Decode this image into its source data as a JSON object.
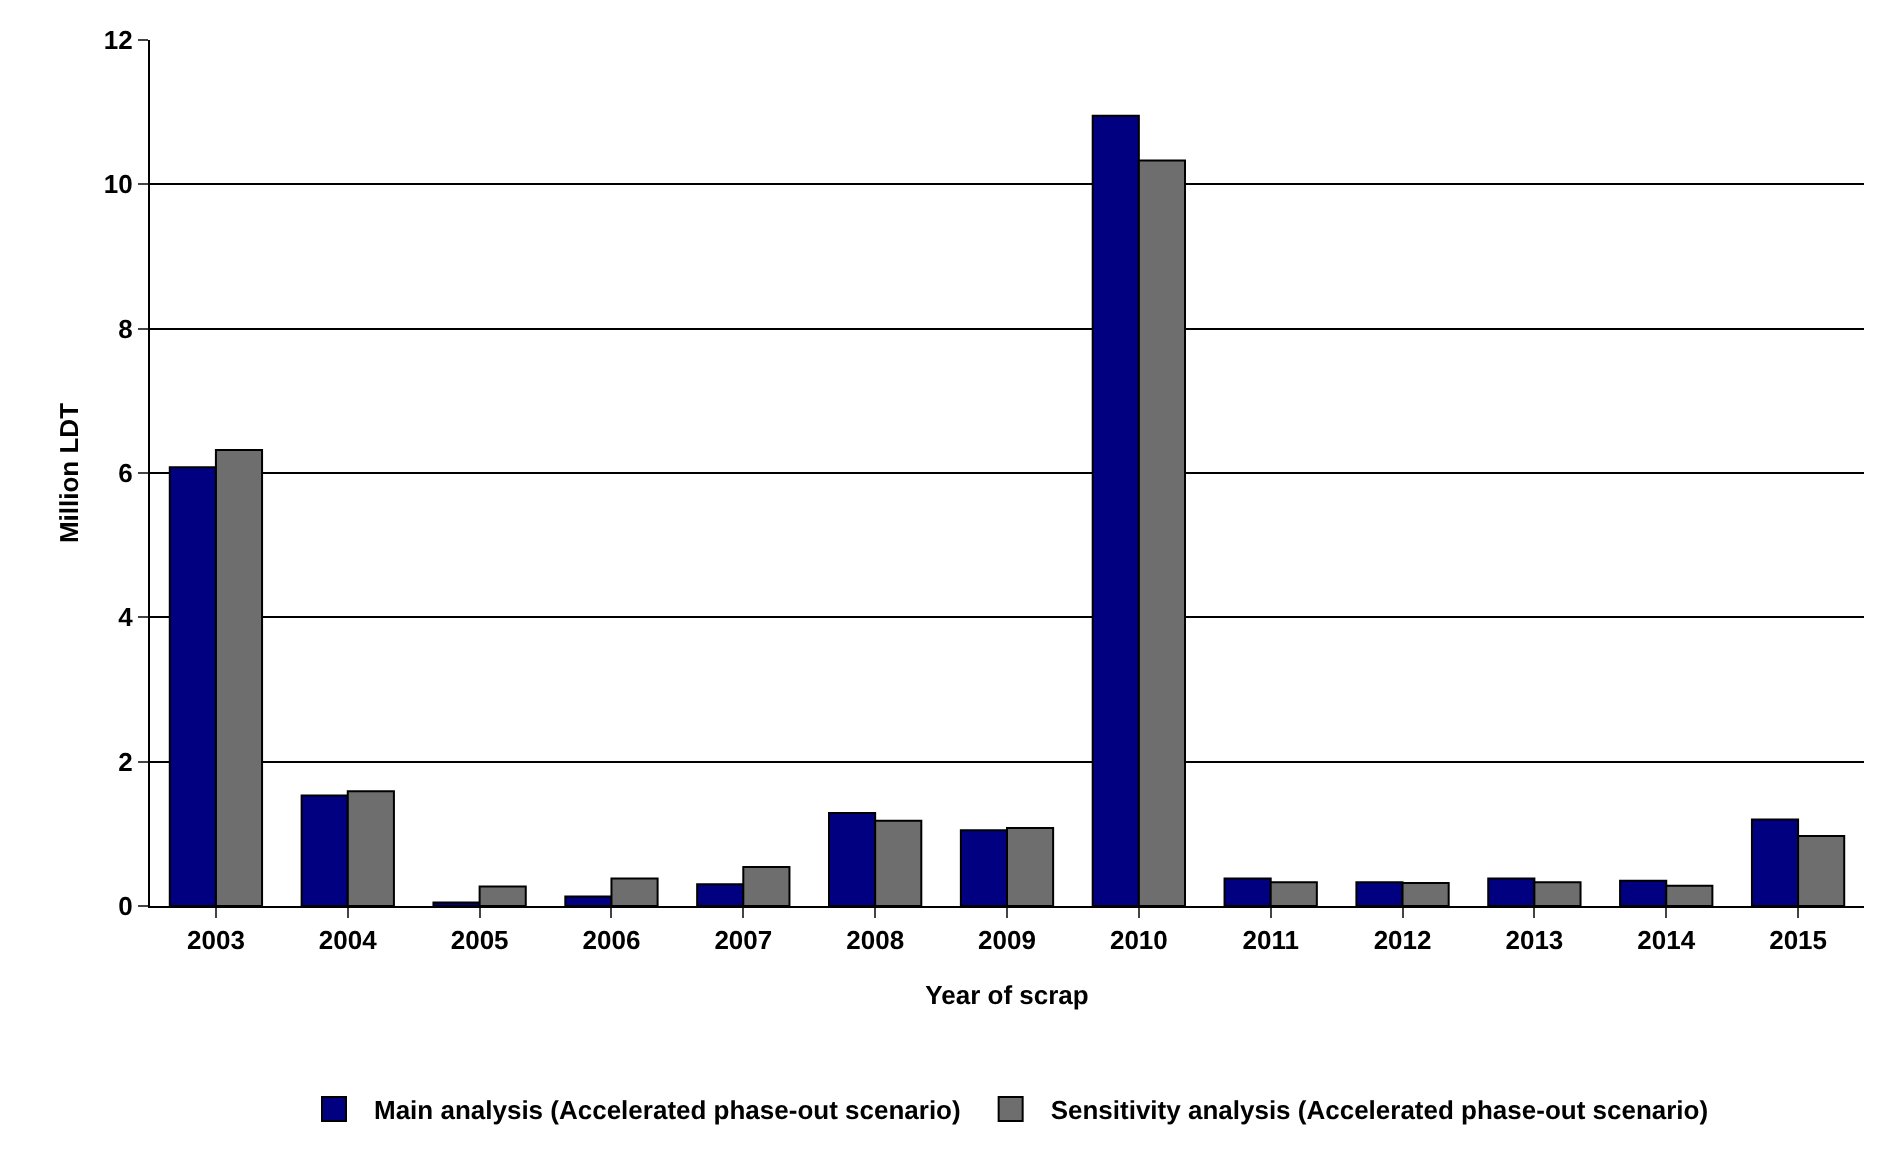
{
  "chart_data": {
    "type": "bar",
    "xlabel": "Year of scrap",
    "ylabel": "Million LDT",
    "categories": [
      "2003",
      "2004",
      "2005",
      "2006",
      "2007",
      "2008",
      "2009",
      "2010",
      "2011",
      "2012",
      "2013",
      "2014",
      "2015"
    ],
    "series": [
      {
        "name": "Main analysis (Accelerated phase-out scenario)",
        "color": "#000080",
        "values": [
          6.08,
          1.53,
          0.05,
          0.13,
          0.3,
          1.29,
          1.05,
          10.95,
          0.38,
          0.33,
          0.38,
          0.35,
          1.2
        ]
      },
      {
        "name": "Sensitivity analysis (Accelerated phase-out scenario)",
        "color": "#6e6e6e",
        "values": [
          6.32,
          1.59,
          0.27,
          0.38,
          0.54,
          1.18,
          1.08,
          10.33,
          0.33,
          0.32,
          0.33,
          0.28,
          0.97
        ]
      }
    ],
    "ylim": [
      0,
      12
    ],
    "yticks": [
      0,
      2,
      4,
      6,
      8,
      10,
      12
    ],
    "grid": "y",
    "legend": "bottom"
  }
}
